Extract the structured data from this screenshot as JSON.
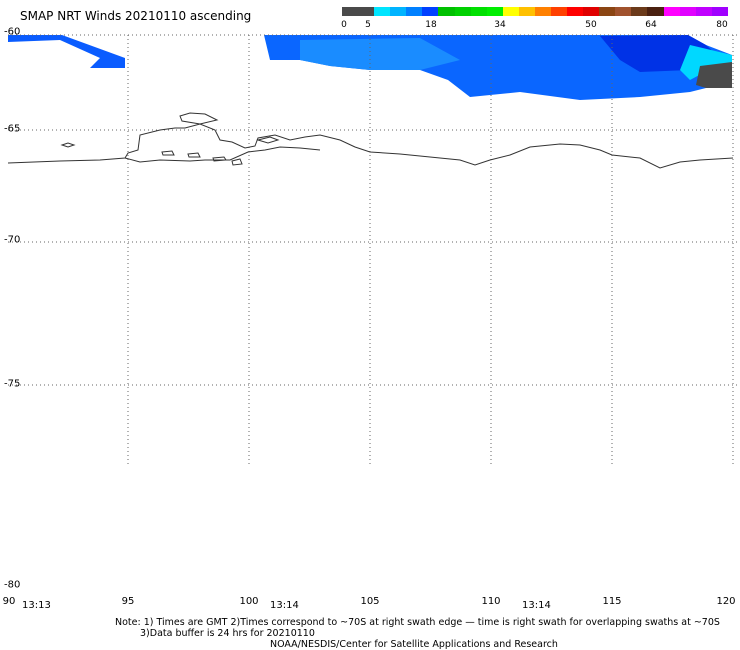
{
  "title": "SMAP NRT Winds 20210110 ascending",
  "colorbar": {
    "colors": [
      "#4a4a4a",
      "#4a4a4a",
      "#00e5ff",
      "#00b4ff",
      "#0080ff",
      "#0040ff",
      "#00c000",
      "#00d000",
      "#00e000",
      "#00ee00",
      "#ffff00",
      "#ffc000",
      "#ff8000",
      "#ff4000",
      "#ff0000",
      "#e00000",
      "#8b4513",
      "#a0522d",
      "#6b3a1a",
      "#4a2010",
      "#ff00ff",
      "#e000ff",
      "#c000ff",
      "#a000ff"
    ],
    "labels": [
      "0",
      "5",
      "18",
      "34",
      "50",
      "64",
      "80"
    ]
  },
  "map": {
    "lon_range": [
      90,
      120
    ],
    "lat_range": [
      -60,
      -80
    ],
    "lat_ticks": [
      "-60",
      "-65",
      "-70",
      "-75",
      "-80"
    ],
    "lon_ticks": [
      "90",
      "95",
      "100",
      "105",
      "110",
      "115",
      "120"
    ]
  },
  "times": [
    "13:13",
    "13:14",
    "13:14"
  ],
  "notes": {
    "line1": "Note: 1) Times are GMT 2)Times correspond to ~70S at right swath edge — time is right swath for overlapping swaths at ~70S",
    "line2": "3)Data buffer is 24 hrs for 20210110",
    "line3": "NOAA/NESDIS/Center for Satellite Applications and Research"
  }
}
